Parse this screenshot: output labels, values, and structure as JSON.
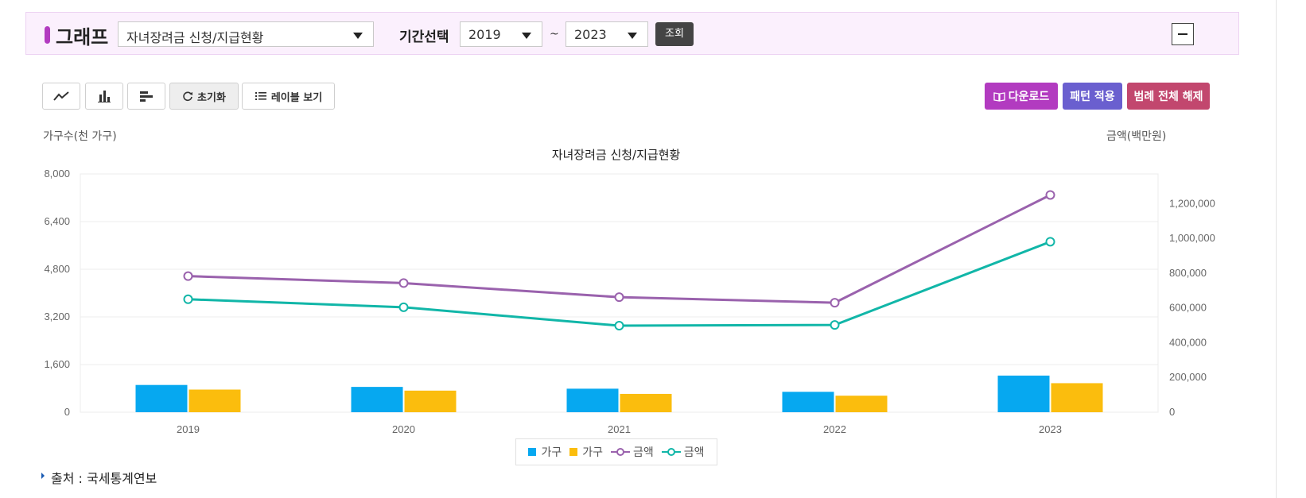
{
  "header": {
    "title": "그래프",
    "chart_select": "자녀장려금 신청/지급현황",
    "period_label": "기간선택",
    "start_year": "2019",
    "tilde": "~",
    "end_year": "2023",
    "query_label": "조회"
  },
  "toolbar": {
    "reset_label": "초기화",
    "label_view": "레이블 보기",
    "download_label": "다운로드",
    "pattern_label": "패턴 적용",
    "legend_clear_label": "범례 전체 해제"
  },
  "colors": {
    "accent": "#b23bc0",
    "download": "#b23bc0",
    "pattern": "#6a5fcf",
    "legend_clear": "#c2476e",
    "bar1": "#06a8f0",
    "bar2": "#fbbd0d",
    "line1": "#9a62ad",
    "line2": "#11b6a8"
  },
  "source": "출처 : 국세통계연보",
  "chart_data": {
    "type": "bar+line",
    "title": "자녀장려금 신청/지급현황",
    "ylabel_left": "가구수(천 가구)",
    "ylabel_right": "금액(백만원)",
    "categories": [
      "2019",
      "2020",
      "2021",
      "2022",
      "2023"
    ],
    "ylim_left": [
      0,
      8000
    ],
    "ylim_right": [
      0,
      1371000
    ],
    "yticks_left": [
      "0",
      "1,600",
      "3,200",
      "4,800",
      "6,400",
      "8,000"
    ],
    "yticks_right": [
      "0",
      "200,000",
      "400,000",
      "600,000",
      "800,000",
      "1,000,000",
      "1,200,000"
    ],
    "grid": true,
    "legend_position": "bottom",
    "series": [
      {
        "name": "가구",
        "type": "bar",
        "axis": "left",
        "values": [
          915,
          850,
          790,
          685,
          1230
        ]
      },
      {
        "name": "가구",
        "type": "bar",
        "axis": "left",
        "values": [
          760,
          725,
          615,
          555,
          975
        ]
      },
      {
        "name": "금액",
        "type": "line",
        "axis": "right",
        "values": [
          783000,
          743000,
          662000,
          630000,
          1250000
        ]
      },
      {
        "name": "금액",
        "type": "line",
        "axis": "right",
        "values": [
          650000,
          604000,
          498000,
          502000,
          981000
        ]
      }
    ]
  }
}
